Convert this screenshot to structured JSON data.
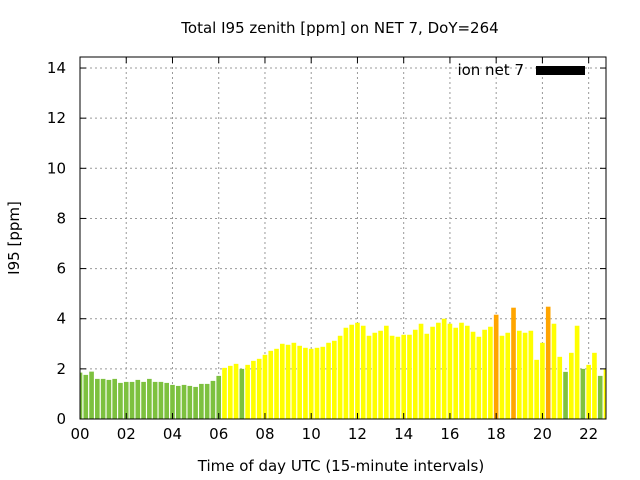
{
  "chart_data": {
    "type": "bar",
    "title": "Total I95 zenith [ppm] on NET 7, DoY=264",
    "xlabel": "Time of day UTC (15-minute intervals)",
    "ylabel": "I95 [ppm]",
    "xlim": [
      0,
      22.75
    ],
    "ylim": [
      0,
      14.44
    ],
    "x_interval_hours": 0.25,
    "xticks": [
      0,
      2,
      4,
      6,
      8,
      10,
      12,
      14,
      16,
      18,
      20,
      22
    ],
    "xtick_labels": [
      "00",
      "02",
      "04",
      "06",
      "08",
      "10",
      "12",
      "14",
      "16",
      "18",
      "20",
      "22"
    ],
    "yticks": [
      0,
      2,
      4,
      6,
      8,
      10,
      12,
      14
    ],
    "ytick_labels": [
      "0",
      "2",
      "4",
      "6",
      "8",
      "10",
      "12",
      "14"
    ],
    "grid": true,
    "legend": {
      "placement": "top-right",
      "entries": [
        {
          "name": "ion net 7",
          "color": "#000000"
        }
      ]
    },
    "level_colors": {
      "green": "#7dc13f",
      "yellow": "#ffff00",
      "orange": "#ffa500"
    },
    "values": [
      1.85,
      1.76,
      1.89,
      1.6,
      1.6,
      1.56,
      1.6,
      1.44,
      1.48,
      1.48,
      1.56,
      1.48,
      1.6,
      1.48,
      1.48,
      1.44,
      1.36,
      1.32,
      1.36,
      1.32,
      1.28,
      1.4,
      1.4,
      1.52,
      1.72,
      2.04,
      2.12,
      2.2,
      2.0,
      2.16,
      2.32,
      2.4,
      2.56,
      2.72,
      2.8,
      3.0,
      2.96,
      3.04,
      2.92,
      2.84,
      2.8,
      2.84,
      2.88,
      3.04,
      3.12,
      3.32,
      3.64,
      3.76,
      3.84,
      3.72,
      3.32,
      3.44,
      3.52,
      3.72,
      3.32,
      3.28,
      3.36,
      3.36,
      3.56,
      3.8,
      3.4,
      3.68,
      3.84,
      4.0,
      3.8,
      3.64,
      3.84,
      3.72,
      3.48,
      3.28,
      3.56,
      3.68,
      4.16,
      3.32,
      3.44,
      4.44,
      3.52,
      3.44,
      3.52,
      2.36,
      3.04,
      4.48,
      3.8,
      2.48,
      1.88,
      2.64,
      3.72,
      2.0,
      2.16,
      2.64,
      1.72,
      2.0
    ],
    "levels": [
      "green",
      "green",
      "green",
      "green",
      "green",
      "green",
      "green",
      "green",
      "green",
      "green",
      "green",
      "green",
      "green",
      "green",
      "green",
      "green",
      "green",
      "green",
      "green",
      "green",
      "green",
      "green",
      "green",
      "green",
      "green",
      "yellow",
      "yellow",
      "yellow",
      "green",
      "yellow",
      "yellow",
      "yellow",
      "yellow",
      "yellow",
      "yellow",
      "yellow",
      "yellow",
      "yellow",
      "yellow",
      "yellow",
      "yellow",
      "yellow",
      "yellow",
      "yellow",
      "yellow",
      "yellow",
      "yellow",
      "yellow",
      "yellow",
      "yellow",
      "yellow",
      "yellow",
      "yellow",
      "yellow",
      "yellow",
      "yellow",
      "yellow",
      "yellow",
      "yellow",
      "yellow",
      "yellow",
      "yellow",
      "yellow",
      "yellow",
      "yellow",
      "yellow",
      "yellow",
      "yellow",
      "yellow",
      "yellow",
      "yellow",
      "yellow",
      "orange",
      "yellow",
      "yellow",
      "orange",
      "yellow",
      "yellow",
      "yellow",
      "yellow",
      "yellow",
      "orange",
      "yellow",
      "yellow",
      "green",
      "yellow",
      "yellow",
      "green",
      "yellow",
      "yellow",
      "green",
      "yellow"
    ]
  }
}
